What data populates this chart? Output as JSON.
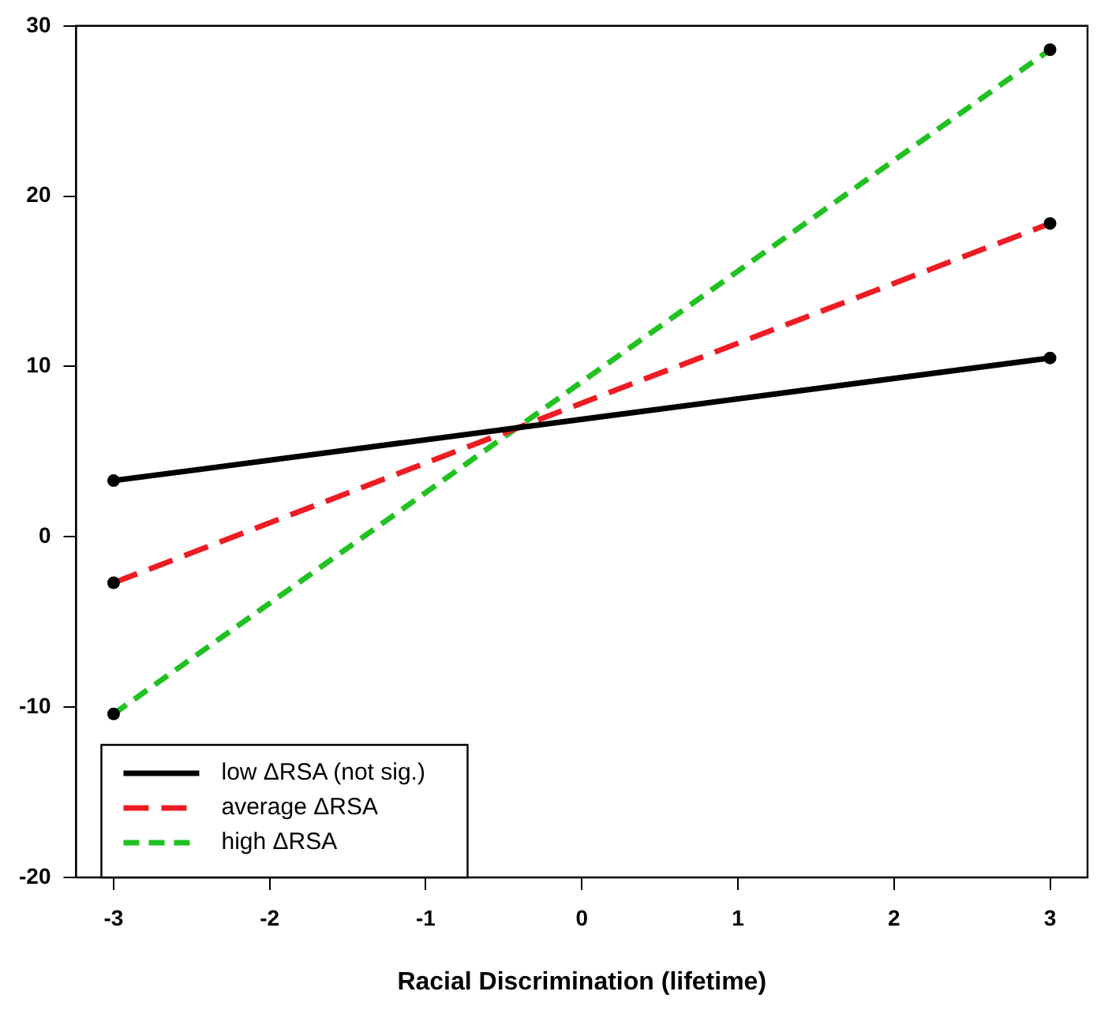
{
  "chart_data": {
    "type": "line",
    "xlabel": "Racial Discrimination (lifetime)",
    "x": [
      -3,
      3
    ],
    "xlim": [
      -3.24,
      3.24
    ],
    "xticks": [
      -3,
      -2,
      -1,
      0,
      1,
      2,
      3
    ],
    "ylim": [
      -20,
      30
    ],
    "yticks": [
      -20,
      -10,
      0,
      10,
      20,
      30
    ],
    "grid": false,
    "legend": "bottom left",
    "marker": "circle",
    "series": [
      {
        "name": "low ΔRSA (not sig.)",
        "color": "#000000",
        "values": [
          3.3,
          10.5
        ],
        "line_style": "solid"
      },
      {
        "name": "average ΔRSA",
        "color": "#ee1c24",
        "values": [
          -2.7,
          18.4
        ],
        "line_style": "dashed"
      },
      {
        "name": "high ΔRSA",
        "color": "#22c122",
        "values": [
          -10.4,
          28.6
        ],
        "line_style": "dashed"
      }
    ]
  }
}
